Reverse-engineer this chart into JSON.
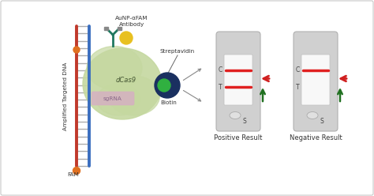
{
  "bg_color": "#ffffff",
  "border_color": "#c8c8c8",
  "dna_left_color": "#c0392b",
  "dna_right_color": "#3a6ebf",
  "fam_color": "#e07020",
  "dcas9_color": "#c5d8a0",
  "dcas9_edge": "#9aaa70",
  "sgrna_color": "#d8a8c8",
  "biotin_outer_color": "#1a3060",
  "biotin_inner_color": "#30b040",
  "aunp_color": "#e8c020",
  "antibody_color": "#207860",
  "lateral_flow_bg": "#d0d0d0",
  "lateral_flow_window_bg": "#f8f8f8",
  "lateral_flow_line_c": "#e02020",
  "lateral_flow_line_t": "#e02020",
  "arrow_red": "#d02020",
  "arrow_green": "#207020",
  "label_fontsize": 6.0,
  "small_fontsize": 5.2,
  "lateral_font": 5.5,
  "aunp_label": "AuNP-αFAM",
  "antibody_label": "Antibody",
  "dcas9_label": "dCas9",
  "sgrna_label": "sgRNA",
  "biotin_label": "Biotin",
  "streptavidin_label": "Streptavidin",
  "fam_label": "FAM",
  "dna_label": "Amplified Targeted DNA",
  "positive_label": "Positive Result",
  "negative_label": "Negative Result"
}
